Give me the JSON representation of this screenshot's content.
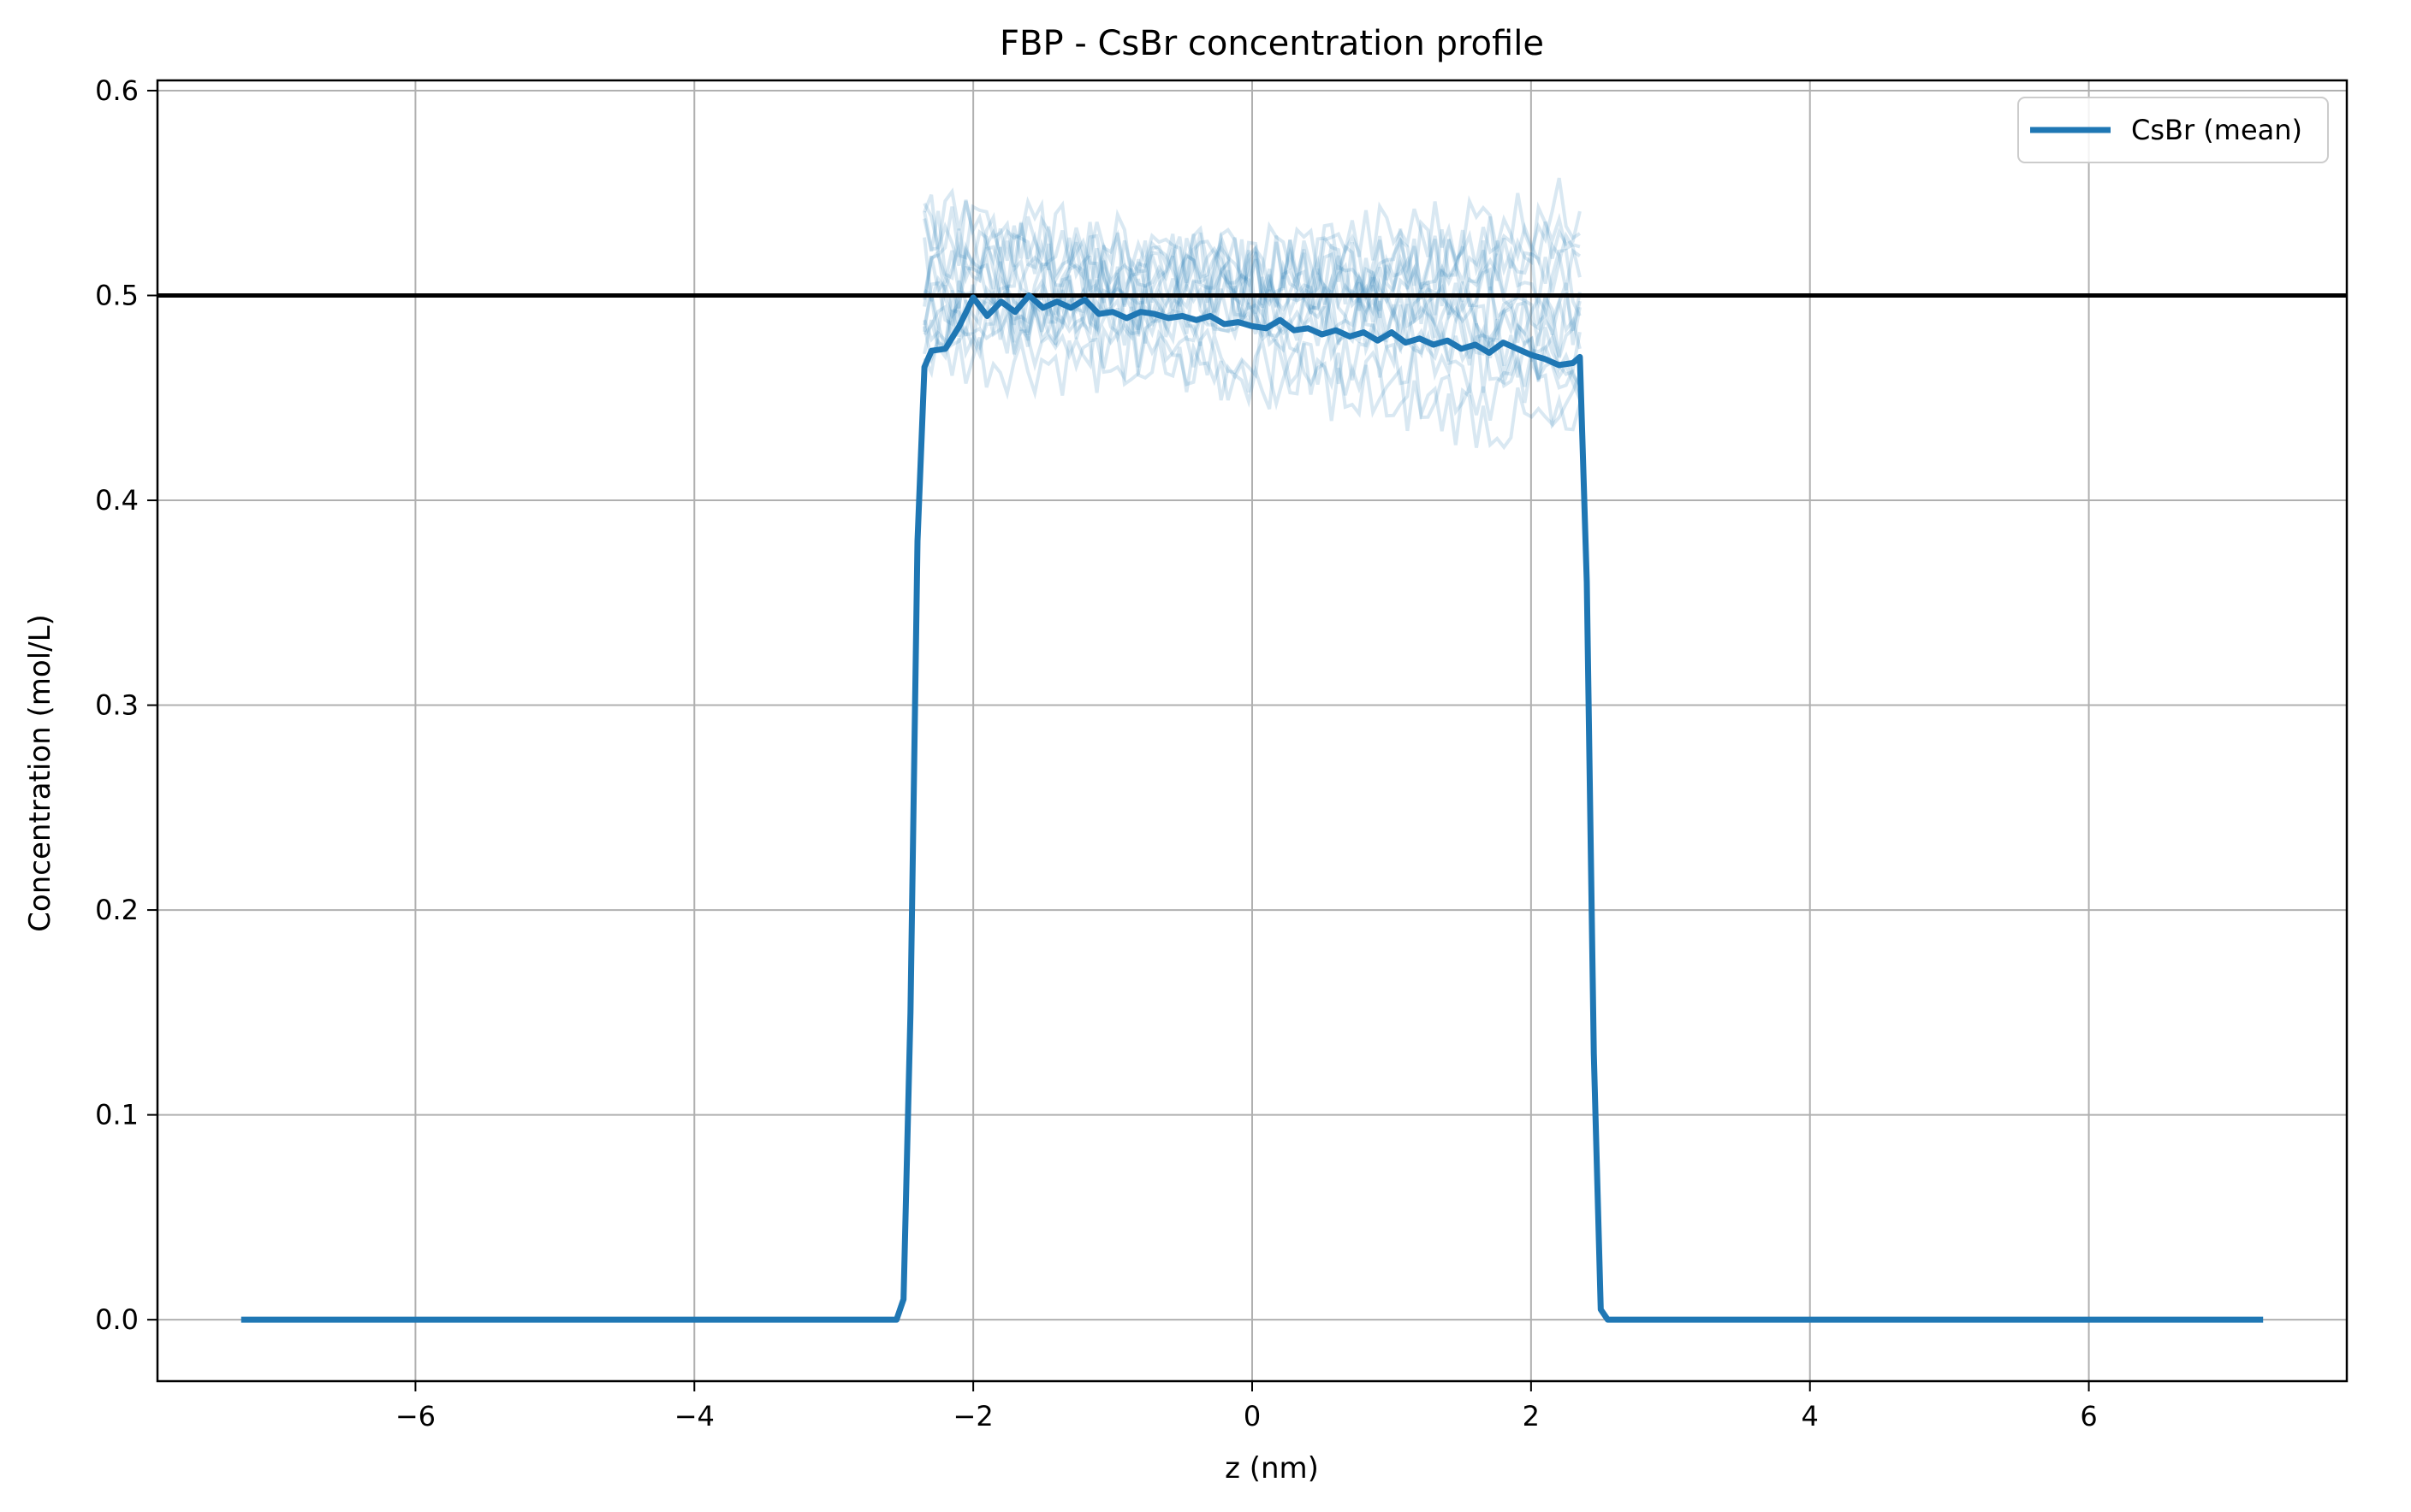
{
  "chart_data": {
    "type": "line",
    "title": "FBP - CsBr concentration profile",
    "xlabel": "z (nm)",
    "ylabel": "Concentration (mol/L)",
    "xlim": [
      -7.85,
      7.85
    ],
    "ylim": [
      -0.03,
      0.605
    ],
    "xticks": [
      -6,
      -4,
      -2,
      0,
      2,
      4,
      6
    ],
    "xtick_labels": [
      "−6",
      "−4",
      "−2",
      "0",
      "2",
      "4",
      "6"
    ],
    "yticks": [
      0.0,
      0.1,
      0.2,
      0.3,
      0.4,
      0.5,
      0.6
    ],
    "ytick_labels": [
      "0.0",
      "0.1",
      "0.2",
      "0.3",
      "0.4",
      "0.5",
      "0.6"
    ],
    "grid": true,
    "legend": {
      "placement": "top-right",
      "entries": [
        "CsBr (mean)"
      ]
    },
    "reference_line": {
      "y": 0.5,
      "color": "#000000"
    },
    "colors": {
      "mean": "#1f77b4",
      "replicas": "#1f77b4",
      "grid": "#b0b0b0"
    },
    "series": [
      {
        "name": "CsBr (mean)",
        "x": [
          -7.25,
          -2.55,
          -2.5,
          -2.45,
          -2.4,
          -2.35,
          -2.3,
          -2.2,
          -2.1,
          -2.0,
          -1.9,
          -1.8,
          -1.7,
          -1.6,
          -1.5,
          -1.4,
          -1.3,
          -1.2,
          -1.1,
          -1.0,
          -0.9,
          -0.8,
          -0.7,
          -0.6,
          -0.5,
          -0.4,
          -0.3,
          -0.2,
          -0.1,
          0.0,
          0.1,
          0.2,
          0.3,
          0.4,
          0.5,
          0.6,
          0.7,
          0.8,
          0.9,
          1.0,
          1.1,
          1.2,
          1.3,
          1.4,
          1.5,
          1.6,
          1.7,
          1.8,
          1.9,
          2.0,
          2.1,
          2.2,
          2.3,
          2.35,
          2.4,
          2.45,
          2.5,
          2.55,
          7.25
        ],
        "y": [
          0.0,
          0.0,
          0.01,
          0.15,
          0.38,
          0.465,
          0.473,
          0.474,
          0.485,
          0.499,
          0.49,
          0.497,
          0.492,
          0.5,
          0.494,
          0.497,
          0.494,
          0.498,
          0.491,
          0.492,
          0.489,
          0.492,
          0.491,
          0.489,
          0.49,
          0.488,
          0.49,
          0.486,
          0.487,
          0.485,
          0.484,
          0.488,
          0.483,
          0.484,
          0.481,
          0.483,
          0.48,
          0.482,
          0.478,
          0.482,
          0.477,
          0.479,
          0.476,
          0.478,
          0.474,
          0.476,
          0.472,
          0.477,
          0.474,
          0.471,
          0.469,
          0.466,
          0.467,
          0.47,
          0.36,
          0.13,
          0.005,
          0.0,
          0.0
        ]
      }
    ]
  }
}
